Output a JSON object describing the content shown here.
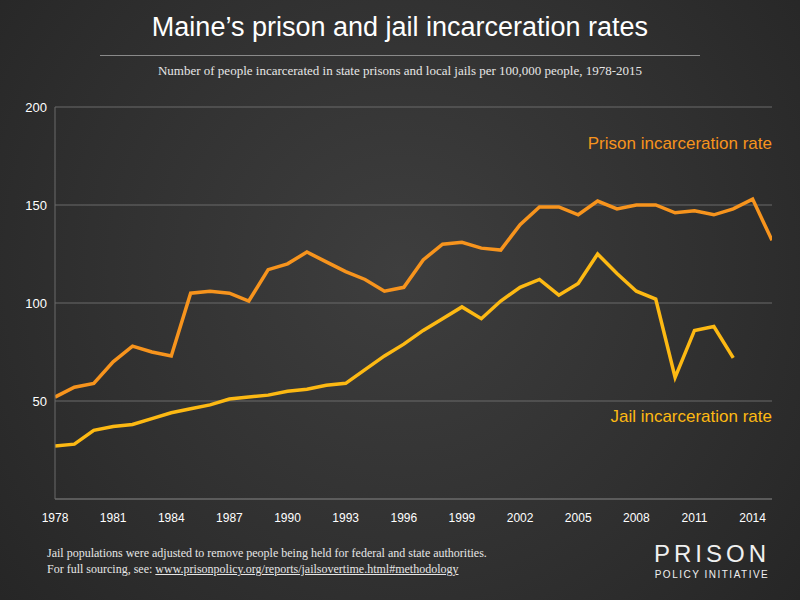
{
  "chart_data": {
    "type": "line",
    "title": "Maine’s prison and jail incarceration rates",
    "subtitle": "Number of people incarcerated in state prisons and local jails per 100,000 people, 1978-2015",
    "x": [
      1978,
      1979,
      1980,
      1981,
      1982,
      1983,
      1984,
      1985,
      1986,
      1987,
      1988,
      1989,
      1990,
      1991,
      1992,
      1993,
      1994,
      1995,
      1996,
      1997,
      1998,
      1999,
      2000,
      2001,
      2002,
      2003,
      2004,
      2005,
      2006,
      2007,
      2008,
      2009,
      2010,
      2011,
      2012,
      2013,
      2014,
      2015
    ],
    "series": [
      {
        "name": "Prison incarceration rate",
        "color": "#f7941d",
        "values": [
          52,
          57,
          59,
          70,
          78,
          75,
          73,
          105,
          106,
          105,
          101,
          117,
          120,
          126,
          121,
          116,
          112,
          106,
          108,
          122,
          130,
          131,
          128,
          127,
          140,
          149,
          149,
          145,
          152,
          148,
          150,
          150,
          146,
          147,
          145,
          148,
          153,
          132
        ]
      },
      {
        "name": "Jail incarceration rate",
        "color": "#fdb913",
        "values": [
          27,
          28,
          35,
          37,
          38,
          41,
          44,
          46,
          48,
          51,
          52,
          53,
          55,
          56,
          58,
          59,
          66,
          73,
          79,
          86,
          92,
          98,
          92,
          101,
          108,
          112,
          104,
          110,
          125,
          115,
          106,
          102,
          62,
          86,
          88,
          72,
          null,
          null
        ]
      }
    ],
    "xlim": [
      1978,
      2015
    ],
    "xticks": [
      1978,
      1981,
      1984,
      1987,
      1990,
      1993,
      1996,
      1999,
      2002,
      2005,
      2008,
      2011,
      2014
    ],
    "ylim": [
      0,
      200
    ],
    "yticks": [
      50,
      100,
      150,
      200
    ],
    "grid": true,
    "footnotes": [
      "Jail populations were adjusted to remove people being held for federal and state authorities."
    ],
    "source_prefix": "For full sourcing, see: ",
    "source_link": "www.prisonpolicy.org/reports/jailsovertime.html#methodology",
    "logo": [
      "PRISON",
      "POLICY INITIATIVE"
    ]
  }
}
